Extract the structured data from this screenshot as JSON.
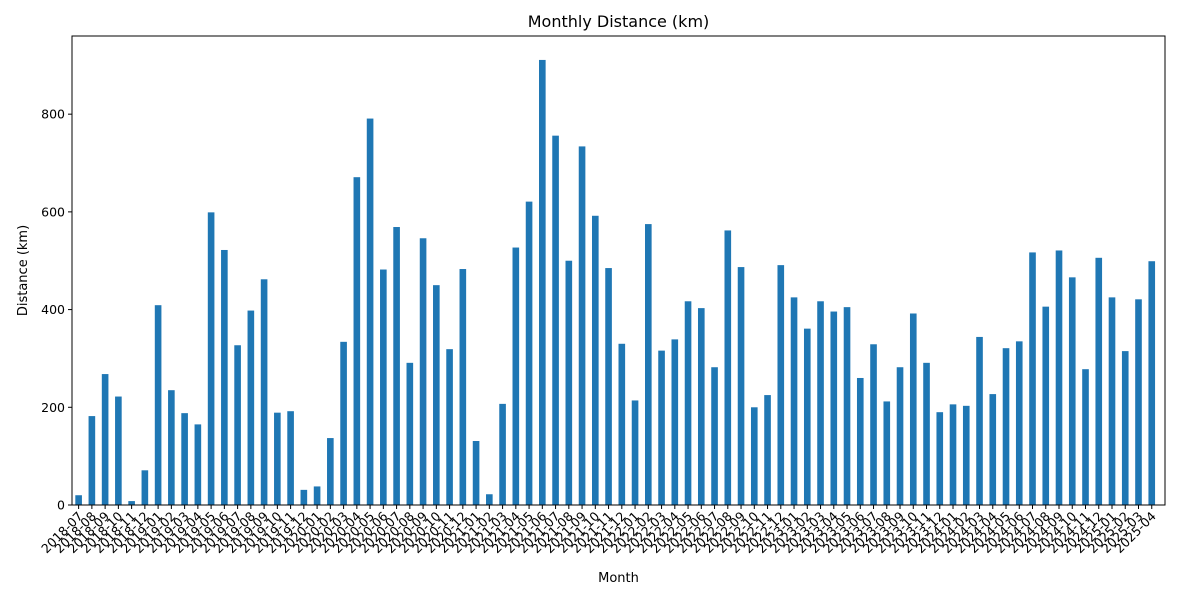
{
  "chart_data": {
    "type": "bar",
    "title": "Monthly Distance (km)",
    "xlabel": "Month",
    "ylabel": "Distance (km)",
    "ylim": [
      0,
      960
    ],
    "yticks": [
      0,
      200,
      400,
      600,
      800
    ],
    "bar_color": "#1f77b4",
    "grid": false,
    "legend": "none",
    "categories": [
      "2018-07",
      "2018-08",
      "2018-09",
      "2018-10",
      "2018-11",
      "2018-12",
      "2019-01",
      "2019-02",
      "2019-03",
      "2019-04",
      "2019-05",
      "2019-06",
      "2019-07",
      "2019-08",
      "2019-09",
      "2019-10",
      "2019-11",
      "2019-12",
      "2020-01",
      "2020-02",
      "2020-03",
      "2020-04",
      "2020-05",
      "2020-06",
      "2020-07",
      "2020-08",
      "2020-09",
      "2020-10",
      "2020-11",
      "2020-12",
      "2021-01",
      "2021-02",
      "2021-03",
      "2021-04",
      "2021-05",
      "2021-06",
      "2021-07",
      "2021-08",
      "2021-09",
      "2021-10",
      "2021-11",
      "2021-12",
      "2022-01",
      "2022-02",
      "2022-03",
      "2022-04",
      "2022-05",
      "2022-06",
      "2022-07",
      "2022-08",
      "2022-09",
      "2022-10",
      "2022-11",
      "2022-12",
      "2023-01",
      "2023-02",
      "2023-03",
      "2023-04",
      "2023-05",
      "2023-06",
      "2023-07",
      "2023-08",
      "2023-09",
      "2023-10",
      "2023-11",
      "2023-12",
      "2024-01",
      "2024-02",
      "2024-03",
      "2024-04",
      "2024-05",
      "2024-06",
      "2024-07",
      "2024-08",
      "2024-09",
      "2024-10",
      "2024-11",
      "2024-12",
      "2025-01",
      "2025-02",
      "2025-03",
      "2025-04"
    ],
    "values": [
      20,
      182,
      268,
      222,
      8,
      71,
      409,
      235,
      188,
      165,
      599,
      522,
      327,
      398,
      462,
      189,
      192,
      31,
      38,
      137,
      334,
      671,
      791,
      482,
      569,
      291,
      546,
      450,
      319,
      483,
      131,
      22,
      207,
      527,
      621,
      911,
      756,
      500,
      734,
      592,
      485,
      330,
      214,
      575,
      316,
      339,
      417,
      403,
      282,
      562,
      487,
      200,
      225,
      491,
      425,
      361,
      417,
      396,
      405,
      260,
      329,
      212,
      282,
      392,
      291,
      190,
      206,
      203,
      344,
      227,
      321,
      335,
      517,
      406,
      521,
      466,
      278,
      506,
      425,
      315,
      421,
      499
    ]
  }
}
